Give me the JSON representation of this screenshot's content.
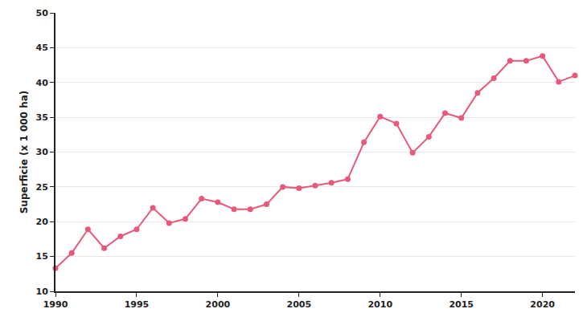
{
  "chart_data": {
    "type": "line",
    "y_label": "Superficie (x 1 000 ha)",
    "x": [
      1990,
      1991,
      1992,
      1993,
      1994,
      1995,
      1996,
      1997,
      1998,
      1999,
      2000,
      2001,
      2002,
      2003,
      2004,
      2005,
      2006,
      2007,
      2008,
      2009,
      2010,
      2011,
      2012,
      2013,
      2014,
      2015,
      2016,
      2017,
      2018,
      2019,
      2020,
      2021,
      2022
    ],
    "values": [
      13.3,
      15.5,
      18.9,
      16.2,
      17.9,
      18.9,
      22.0,
      19.8,
      20.4,
      23.3,
      22.8,
      21.8,
      21.8,
      22.5,
      25.0,
      24.8,
      25.2,
      25.6,
      26.1,
      31.4,
      35.1,
      34.1,
      29.9,
      32.2,
      35.6,
      34.9,
      38.5,
      40.6,
      43.1,
      43.1,
      43.8,
      40.1,
      41.0
    ],
    "color": "#e8587a",
    "marker": "circle",
    "line_style": "solid",
    "xlim": [
      1990,
      2022
    ],
    "xticks": [
      1990,
      1995,
      2000,
      2005,
      2010,
      2015,
      2020
    ],
    "ylim": [
      10,
      50
    ],
    "yticks": [
      10,
      15,
      20,
      25,
      30,
      35,
      40,
      45,
      50
    ],
    "grid": true
  }
}
